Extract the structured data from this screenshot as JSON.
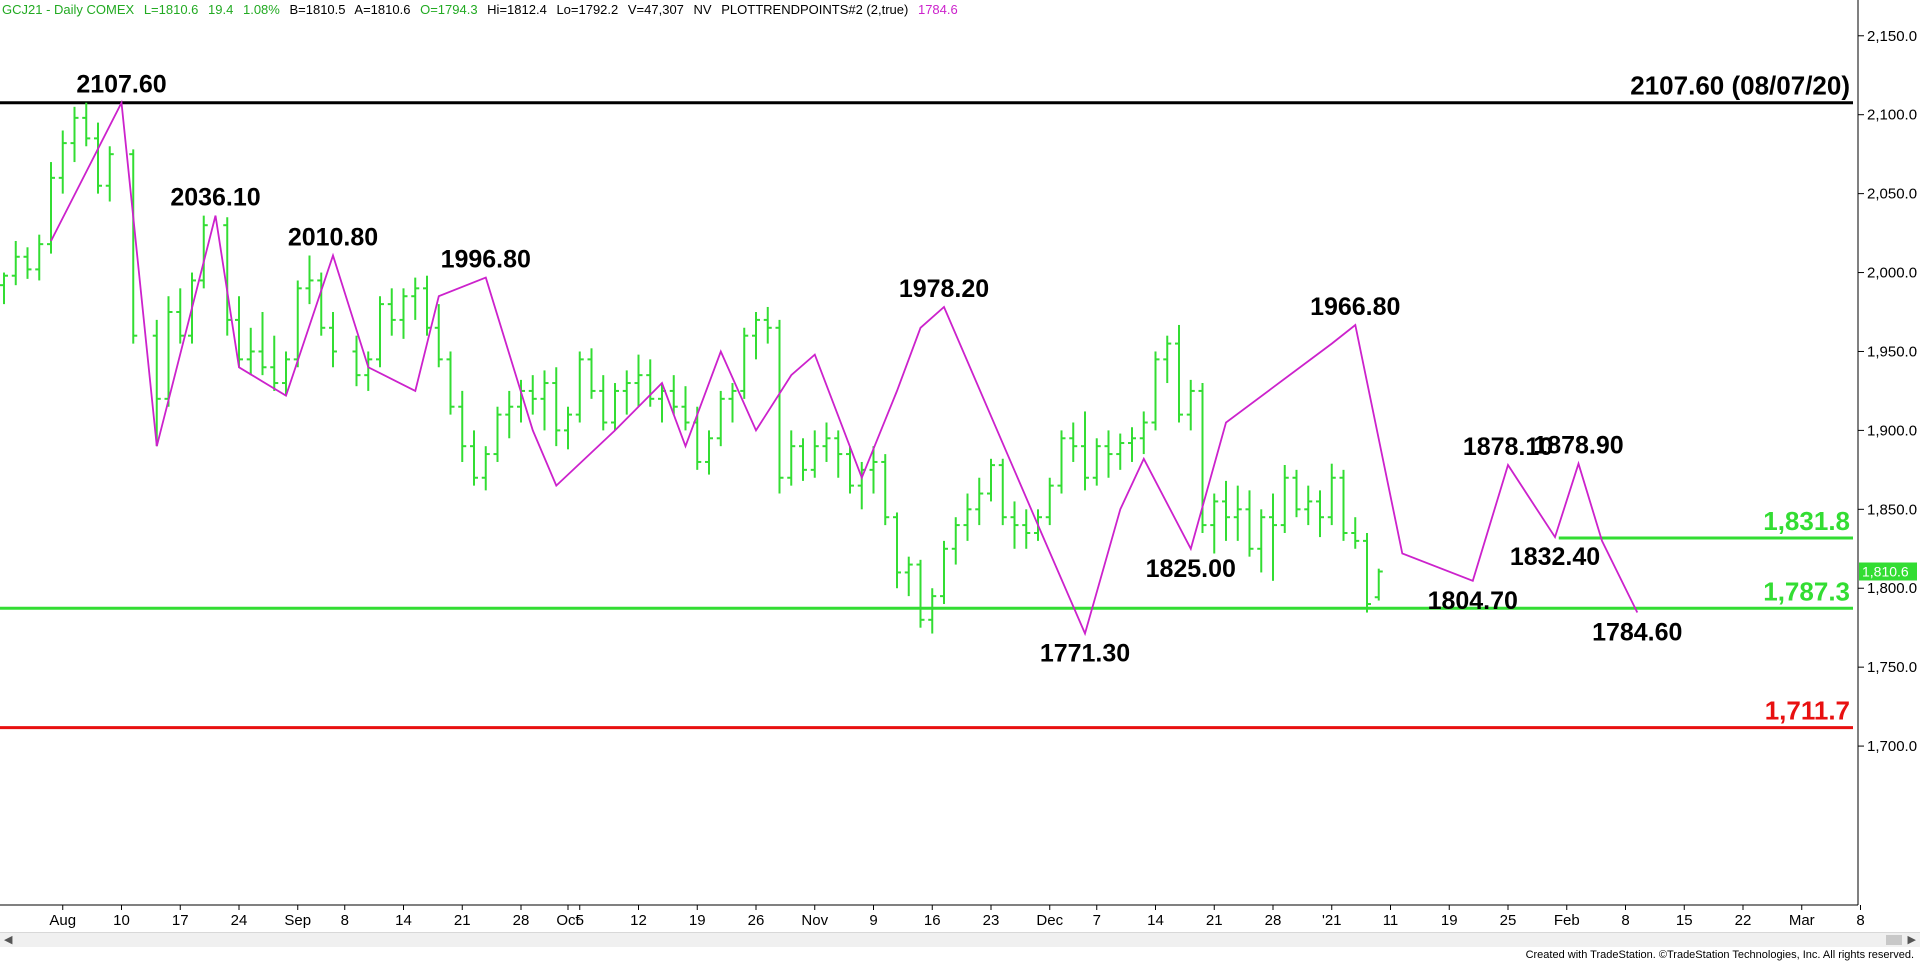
{
  "header": {
    "symbol": "GCJ21 - Daily  COMEX",
    "last": "L=1810.6",
    "change": "19.4",
    "pct": "1.08%",
    "bid": "B=1810.5",
    "ask": "A=1810.6",
    "open": "O=1794.3",
    "high": "Hi=1812.4",
    "low": "Lo=1792.2",
    "volume": "V=47,307",
    "nv": "NV",
    "study": "PLOTTRENDPOINTS#2 (2,true)",
    "study_value": "1784.6"
  },
  "colors": {
    "bars": "#33dd33",
    "zigzag": "#cc22cc",
    "header_green": "#22aa22",
    "resistance": "#000000",
    "support_green": "#33dd33",
    "support_red": "#e81010",
    "last_price_tag": "#33dd33"
  },
  "credit": "Created with TradeStation. ©TradeStation Technologies, Inc. All rights reserved.",
  "chart_data": {
    "type": "ohlc",
    "y_axis": {
      "min": 1650,
      "max": 2160,
      "ticks": [
        1700,
        1750,
        1800,
        1850,
        1900,
        1950,
        2000,
        2050,
        2100,
        2150
      ],
      "tick_labels": [
        "1,700.0",
        "1,750.0",
        "1,800.0",
        "1,850.0",
        "1,900.0",
        "1,950.0",
        "2,000.0",
        "2,050.0",
        "2,100.0",
        "2,150.0"
      ]
    },
    "x_axis": {
      "tick_labels": [
        {
          "i": 5,
          "label": "Aug"
        },
        {
          "i": 10,
          "label": "10"
        },
        {
          "i": 15,
          "label": "17"
        },
        {
          "i": 20,
          "label": "24"
        },
        {
          "i": 25,
          "label": "Sep"
        },
        {
          "i": 29,
          "label": "8"
        },
        {
          "i": 34,
          "label": "14"
        },
        {
          "i": 39,
          "label": "21"
        },
        {
          "i": 44,
          "label": "28"
        },
        {
          "i": 48,
          "label": "Oct"
        },
        {
          "i": 49,
          "label": "5"
        },
        {
          "i": 54,
          "label": "12"
        },
        {
          "i": 59,
          "label": "19"
        },
        {
          "i": 64,
          "label": "26"
        },
        {
          "i": 69,
          "label": "Nov"
        },
        {
          "i": 74,
          "label": "9"
        },
        {
          "i": 79,
          "label": "16"
        },
        {
          "i": 84,
          "label": "23"
        },
        {
          "i": 89,
          "label": "Dec"
        },
        {
          "i": 93,
          "label": "7"
        },
        {
          "i": 98,
          "label": "14"
        },
        {
          "i": 103,
          "label": "21"
        },
        {
          "i": 108,
          "label": "28"
        },
        {
          "i": 113,
          "label": "'21"
        },
        {
          "i": 118,
          "label": "11"
        },
        {
          "i": 123,
          "label": "19"
        },
        {
          "i": 128,
          "label": "25"
        },
        {
          "i": 133,
          "label": "Feb"
        },
        {
          "i": 138,
          "label": "8"
        },
        {
          "i": 143,
          "label": "15"
        },
        {
          "i": 148,
          "label": "22"
        },
        {
          "i": 153,
          "label": "Mar"
        },
        {
          "i": 158,
          "label": "8"
        }
      ]
    },
    "zigzag": [
      {
        "i": 4,
        "price": 2020
      },
      {
        "i": 10,
        "price": 2107.6
      },
      {
        "i": 13,
        "price": 1890
      },
      {
        "i": 18,
        "price": 2036.1
      },
      {
        "i": 20,
        "price": 1940
      },
      {
        "i": 24,
        "price": 1922
      },
      {
        "i": 28,
        "price": 2010.8
      },
      {
        "i": 31,
        "price": 1940
      },
      {
        "i": 35,
        "price": 1925
      },
      {
        "i": 37,
        "price": 1985
      },
      {
        "i": 41,
        "price": 1996.8
      },
      {
        "i": 45,
        "price": 1900
      },
      {
        "i": 47,
        "price": 1865
      },
      {
        "i": 52,
        "price": 1900
      },
      {
        "i": 56,
        "price": 1930
      },
      {
        "i": 58,
        "price": 1890
      },
      {
        "i": 61,
        "price": 1950
      },
      {
        "i": 64,
        "price": 1900
      },
      {
        "i": 67,
        "price": 1935
      },
      {
        "i": 69,
        "price": 1948
      },
      {
        "i": 73,
        "price": 1870
      },
      {
        "i": 76,
        "price": 1925
      },
      {
        "i": 78,
        "price": 1965
      },
      {
        "i": 80,
        "price": 1978.2
      },
      {
        "i": 88,
        "price": 1840
      },
      {
        "i": 92,
        "price": 1771.3
      },
      {
        "i": 95,
        "price": 1850
      },
      {
        "i": 97,
        "price": 1882
      },
      {
        "i": 101,
        "price": 1825
      },
      {
        "i": 104,
        "price": 1905
      },
      {
        "i": 113,
        "price": 1955
      },
      {
        "i": 115,
        "price": 1966.8
      },
      {
        "i": 119,
        "price": 1822
      },
      {
        "i": 125,
        "price": 1804.7
      },
      {
        "i": 128,
        "price": 1878.1
      },
      {
        "i": 132,
        "price": 1832.4
      },
      {
        "i": 134,
        "price": 1878.9
      },
      {
        "i": 136,
        "price": 1830
      },
      {
        "i": 139,
        "price": 1784.6
      }
    ],
    "pivot_labels": [
      {
        "text": "2107.60",
        "i": 10,
        "price": 2107.6,
        "pos": "above"
      },
      {
        "text": "2036.10",
        "i": 18,
        "price": 2036.1,
        "pos": "above"
      },
      {
        "text": "2010.80",
        "i": 28,
        "price": 2010.8,
        "pos": "above"
      },
      {
        "text": "1996.80",
        "i": 41,
        "price": 1996.8,
        "pos": "above"
      },
      {
        "text": "1978.20",
        "i": 80,
        "price": 1978.2,
        "pos": "above"
      },
      {
        "text": "1966.80",
        "i": 115,
        "price": 1966.8,
        "pos": "above"
      },
      {
        "text": "1878.10",
        "i": 128,
        "price": 1878.1,
        "pos": "above"
      },
      {
        "text": "1878.90",
        "i": 134,
        "price": 1878.9,
        "pos": "above"
      },
      {
        "text": "1771.30",
        "i": 92,
        "price": 1771.3,
        "pos": "below"
      },
      {
        "text": "1825.00",
        "i": 101,
        "price": 1825,
        "pos": "below"
      },
      {
        "text": "1804.70",
        "i": 125,
        "price": 1804.7,
        "pos": "below"
      },
      {
        "text": "1832.40",
        "i": 132,
        "price": 1832.4,
        "pos": "below"
      },
      {
        "text": "1784.60",
        "i": 139,
        "price": 1784.6,
        "pos": "below"
      }
    ],
    "levels": [
      {
        "price": 2107.6,
        "label": "2107.60 (08/07/20)",
        "color": "#000000",
        "from_i": 0
      },
      {
        "price": 1831.8,
        "label": "1,831.8",
        "color": "#33dd33",
        "from_i": 133
      },
      {
        "price": 1787.3,
        "label": "1,787.3",
        "color": "#33dd33",
        "from_i": 0
      },
      {
        "price": 1711.7,
        "label": "1,711.7",
        "color": "#e81010",
        "from_i": 0
      }
    ],
    "last_price": {
      "value": 1810.6,
      "label": "1,810.6"
    },
    "bars": [
      [
        1992,
        2000,
        1980,
        1998
      ],
      [
        1998,
        2020,
        1992,
        2010
      ],
      [
        2010,
        2016,
        1996,
        2002
      ],
      [
        2002,
        2024,
        1995,
        2018
      ],
      [
        2018,
        2070,
        2012,
        2060
      ],
      [
        2060,
        2090,
        2050,
        2082
      ],
      [
        2082,
        2105,
        2070,
        2098
      ],
      [
        2098,
        2107.6,
        2080,
        2085
      ],
      [
        2085,
        2095,
        2050,
        2055
      ],
      [
        2055,
        2080,
        2045,
        2075
      ],
      [
        2075,
        2078,
        1955,
        1960
      ],
      [
        1960,
        1970,
        1890,
        1920
      ],
      [
        1920,
        1985,
        1915,
        1975
      ],
      [
        1975,
        1990,
        1955,
        1960
      ],
      [
        1960,
        2000,
        1955,
        1995
      ],
      [
        1995,
        2036.1,
        1990,
        2030
      ],
      [
        2030,
        2035,
        1960,
        1970
      ],
      [
        1970,
        1985,
        1940,
        1945
      ],
      [
        1945,
        1965,
        1935,
        1950
      ],
      [
        1950,
        1975,
        1935,
        1940
      ],
      [
        1940,
        1960,
        1925,
        1930
      ],
      [
        1930,
        1950,
        1922,
        1945
      ],
      [
        1945,
        1995,
        1940,
        1990
      ],
      [
        1990,
        2010.8,
        1980,
        1995
      ],
      [
        1995,
        2000,
        1960,
        1965
      ],
      [
        1965,
        1975,
        1940,
        1950
      ],
      [
        1950,
        1960,
        1928,
        1935
      ],
      [
        1935,
        1950,
        1925,
        1945
      ],
      [
        1945,
        1985,
        1940,
        1980
      ],
      [
        1980,
        1990,
        1960,
        1970
      ],
      [
        1970,
        1990,
        1958,
        1985
      ],
      [
        1985,
        1996.8,
        1970,
        1990
      ],
      [
        1990,
        1998,
        1960,
        1965
      ],
      [
        1965,
        1980,
        1940,
        1945
      ],
      [
        1945,
        1950,
        1910,
        1915
      ],
      [
        1915,
        1925,
        1880,
        1890
      ],
      [
        1890,
        1900,
        1865,
        1870
      ],
      [
        1870,
        1890,
        1862,
        1885
      ],
      [
        1885,
        1915,
        1880,
        1910
      ],
      [
        1910,
        1925,
        1895,
        1915
      ],
      [
        1915,
        1932,
        1905,
        1925
      ],
      [
        1925,
        1935,
        1910,
        1920
      ],
      [
        1920,
        1938,
        1900,
        1930
      ],
      [
        1930,
        1940,
        1890,
        1900
      ],
      [
        1900,
        1915,
        1888,
        1910
      ],
      [
        1910,
        1950,
        1905,
        1945
      ],
      [
        1945,
        1952,
        1920,
        1925
      ],
      [
        1925,
        1935,
        1900,
        1905
      ],
      [
        1905,
        1930,
        1900,
        1925
      ],
      [
        1925,
        1938,
        1910,
        1930
      ],
      [
        1930,
        1948,
        1915,
        1935
      ],
      [
        1935,
        1945,
        1915,
        1920
      ],
      [
        1920,
        1930,
        1905,
        1925
      ],
      [
        1925,
        1935,
        1910,
        1915
      ],
      [
        1915,
        1928,
        1900,
        1905
      ],
      [
        1905,
        1915,
        1875,
        1880
      ],
      [
        1880,
        1900,
        1872,
        1895
      ],
      [
        1895,
        1925,
        1890,
        1920
      ],
      [
        1920,
        1930,
        1905,
        1925
      ],
      [
        1925,
        1965,
        1920,
        1960
      ],
      [
        1960,
        1975,
        1945,
        1970
      ],
      [
        1970,
        1978.2,
        1955,
        1965
      ],
      [
        1965,
        1970,
        1860,
        1870
      ],
      [
        1870,
        1900,
        1865,
        1890
      ],
      [
        1890,
        1895,
        1868,
        1875
      ],
      [
        1875,
        1900,
        1870,
        1890
      ],
      [
        1890,
        1905,
        1880,
        1895
      ],
      [
        1895,
        1900,
        1870,
        1885
      ],
      [
        1885,
        1890,
        1860,
        1865
      ],
      [
        1865,
        1880,
        1850,
        1875
      ],
      [
        1875,
        1890,
        1860,
        1880
      ],
      [
        1880,
        1885,
        1840,
        1845
      ],
      [
        1845,
        1848,
        1800,
        1810
      ],
      [
        1810,
        1820,
        1795,
        1815
      ],
      [
        1815,
        1818,
        1775,
        1780
      ],
      [
        1780,
        1800,
        1771.3,
        1795
      ],
      [
        1795,
        1830,
        1790,
        1825
      ],
      [
        1825,
        1845,
        1815,
        1840
      ],
      [
        1840,
        1860,
        1830,
        1850
      ],
      [
        1850,
        1870,
        1840,
        1860
      ],
      [
        1860,
        1882,
        1855,
        1878
      ],
      [
        1878,
        1882,
        1840,
        1845
      ],
      [
        1845,
        1855,
        1825,
        1840
      ],
      [
        1840,
        1850,
        1825,
        1835
      ],
      [
        1835,
        1850,
        1830,
        1845
      ],
      [
        1845,
        1870,
        1840,
        1865
      ],
      [
        1865,
        1900,
        1860,
        1895
      ],
      [
        1895,
        1905,
        1880,
        1890
      ],
      [
        1890,
        1912,
        1862,
        1870
      ],
      [
        1870,
        1895,
        1865,
        1890
      ],
      [
        1890,
        1900,
        1870,
        1885
      ],
      [
        1885,
        1898,
        1875,
        1892
      ],
      [
        1892,
        1902,
        1880,
        1895
      ],
      [
        1895,
        1912,
        1885,
        1905
      ],
      [
        1905,
        1950,
        1900,
        1945
      ],
      [
        1945,
        1960,
        1930,
        1955
      ],
      [
        1955,
        1966.8,
        1905,
        1910
      ],
      [
        1910,
        1932,
        1900,
        1925
      ],
      [
        1925,
        1930,
        1835,
        1840
      ],
      [
        1840,
        1860,
        1822,
        1855
      ],
      [
        1855,
        1868,
        1830,
        1845
      ],
      [
        1845,
        1865,
        1830,
        1850
      ],
      [
        1850,
        1862,
        1820,
        1825
      ],
      [
        1825,
        1850,
        1810,
        1845
      ],
      [
        1845,
        1860,
        1804.7,
        1840
      ],
      [
        1840,
        1878.1,
        1835,
        1870
      ],
      [
        1870,
        1875,
        1845,
        1850
      ],
      [
        1850,
        1865,
        1840,
        1855
      ],
      [
        1855,
        1862,
        1832.4,
        1845
      ],
      [
        1845,
        1878.9,
        1840,
        1870
      ],
      [
        1870,
        1875,
        1830,
        1835
      ],
      [
        1835,
        1845,
        1825,
        1830
      ],
      [
        1830,
        1835,
        1784.6,
        1790
      ],
      [
        1794.3,
        1812.4,
        1792.2,
        1810.6
      ]
    ],
    "bar_index_map": [
      0,
      1,
      2,
      3,
      4,
      5,
      6,
      7,
      8,
      9,
      11,
      13,
      14,
      15,
      16,
      17,
      19,
      20,
      21,
      22,
      23,
      24,
      25,
      26,
      27,
      28,
      30,
      31,
      32,
      33,
      34,
      35,
      36,
      37,
      38,
      39,
      40,
      41,
      42,
      43,
      44,
      45,
      46,
      47,
      48,
      49,
      50,
      51,
      52,
      53,
      54,
      55,
      56,
      57,
      58,
      59,
      60,
      61,
      62,
      63,
      64,
      65,
      66,
      67,
      68,
      69,
      70,
      71,
      72,
      73,
      74,
      75,
      76,
      77,
      78,
      79,
      80,
      81,
      82,
      83,
      84,
      85,
      86,
      87,
      88,
      89,
      90,
      91,
      92,
      93,
      94,
      95,
      96,
      97,
      98,
      99,
      100,
      101,
      102,
      103,
      104,
      105,
      106,
      107,
      108,
      109,
      110,
      111,
      112,
      113,
      114,
      115,
      116,
      117,
      118,
      119,
      120,
      121,
      122,
      123,
      124,
      125,
      126,
      127,
      128,
      129,
      130,
      131,
      132,
      133,
      134,
      135,
      136,
      137,
      138,
      139,
      140
    ]
  }
}
